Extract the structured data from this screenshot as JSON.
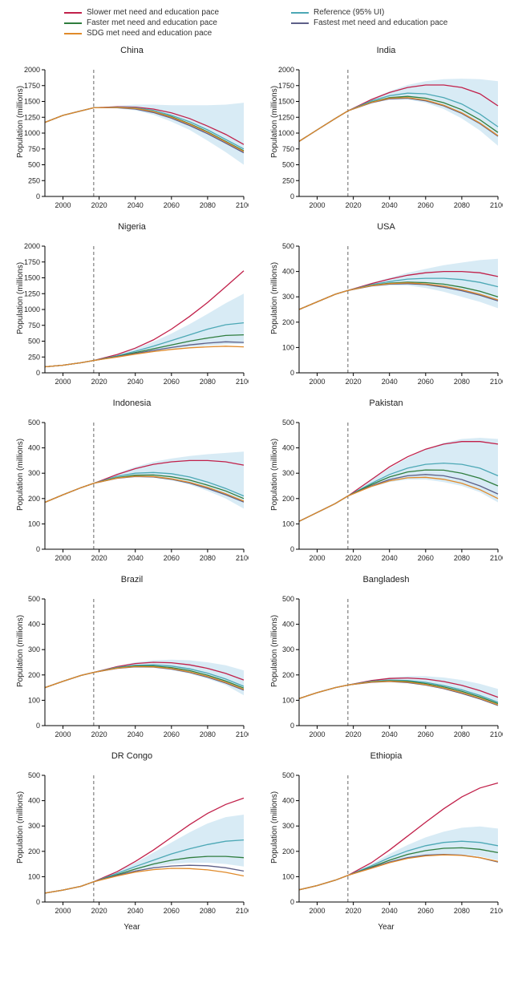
{
  "figure": {
    "background_color": "#ffffff",
    "font_family": "Arial",
    "title_fontsize": 11,
    "label_fontsize": 10,
    "tick_fontsize": 9,
    "x": {
      "label": "Year",
      "min": 1990,
      "max": 2100,
      "ticks": [
        2000,
        2020,
        2040,
        2060,
        2080,
        2100
      ],
      "vline_at": 2017,
      "vline_color": "#666666",
      "vline_dash": "4 3"
    },
    "ylabel": "Population (millions)",
    "axis_color": "#000000",
    "ui_fill": "#bedeee",
    "ui_opacity": 0.6,
    "line_width": 1.3
  },
  "legend": {
    "items": [
      {
        "label": "Slower met need and education pace",
        "color": "#c1204a"
      },
      {
        "label": "Reference (95% UI)",
        "color": "#4ca8b5"
      },
      {
        "label": "Faster met need and education pace",
        "color": "#2f7d3e"
      },
      {
        "label": "Fastest met need and education pace",
        "color": "#5d5f88"
      },
      {
        "label": "SDG met need and education pace",
        "color": "#e08a2a"
      }
    ]
  },
  "panels": [
    {
      "title": "China",
      "y": {
        "min": 0,
        "max": 2000,
        "step": 250
      },
      "ui": {
        "x": [
          1990,
          2000,
          2010,
          2017,
          2030,
          2040,
          2050,
          2060,
          2070,
          2080,
          2090,
          2100
        ],
        "lo": [
          1170,
          1280,
          1350,
          1400,
          1390,
          1360,
          1290,
          1180,
          1050,
          880,
          700,
          500
        ],
        "hi": [
          1170,
          1280,
          1350,
          1400,
          1430,
          1450,
          1450,
          1440,
          1440,
          1440,
          1450,
          1480
        ]
      },
      "series": {
        "reference": [
          1170,
          1280,
          1350,
          1400,
          1410,
          1400,
          1360,
          1280,
          1180,
          1050,
          900,
          750
        ],
        "slower": [
          1170,
          1280,
          1350,
          1400,
          1415,
          1410,
          1380,
          1320,
          1230,
          1110,
          980,
          820
        ],
        "faster": [
          1170,
          1280,
          1350,
          1400,
          1405,
          1390,
          1340,
          1260,
          1150,
          1020,
          870,
          720
        ],
        "fastest": [
          1170,
          1280,
          1350,
          1400,
          1400,
          1380,
          1325,
          1235,
          1120,
          990,
          840,
          690
        ],
        "sdg": [
          1170,
          1280,
          1350,
          1400,
          1405,
          1390,
          1340,
          1250,
          1140,
          1010,
          860,
          710
        ]
      }
    },
    {
      "title": "India",
      "y": {
        "min": 0,
        "max": 2000,
        "step": 250
      },
      "ui": {
        "x": [
          1990,
          2000,
          2010,
          2017,
          2030,
          2040,
          2050,
          2060,
          2070,
          2080,
          2090,
          2100
        ],
        "lo": [
          870,
          1050,
          1230,
          1350,
          1470,
          1530,
          1530,
          1480,
          1380,
          1230,
          1040,
          800
        ],
        "hi": [
          870,
          1050,
          1230,
          1350,
          1540,
          1660,
          1760,
          1820,
          1850,
          1860,
          1850,
          1820
        ]
      },
      "series": {
        "reference": [
          870,
          1050,
          1230,
          1350,
          1510,
          1590,
          1630,
          1620,
          1560,
          1460,
          1300,
          1100
        ],
        "slower": [
          870,
          1050,
          1230,
          1350,
          1530,
          1640,
          1720,
          1760,
          1760,
          1720,
          1620,
          1430
        ],
        "faster": [
          870,
          1050,
          1230,
          1350,
          1490,
          1560,
          1580,
          1550,
          1480,
          1370,
          1210,
          1010
        ],
        "fastest": [
          870,
          1050,
          1230,
          1350,
          1480,
          1540,
          1550,
          1510,
          1430,
          1310,
          1150,
          950
        ],
        "sdg": [
          870,
          1050,
          1230,
          1350,
          1485,
          1550,
          1560,
          1520,
          1440,
          1320,
          1160,
          960
        ]
      }
    },
    {
      "title": "Nigeria",
      "y": {
        "min": 0,
        "max": 2000,
        "step": 250
      },
      "ui": {
        "x": [
          1990,
          2000,
          2010,
          2017,
          2030,
          2040,
          2050,
          2060,
          2070,
          2080,
          2090,
          2100
        ],
        "lo": [
          95,
          120,
          160,
          195,
          250,
          300,
          340,
          380,
          410,
          430,
          450,
          460
        ],
        "hi": [
          95,
          120,
          160,
          195,
          290,
          380,
          490,
          620,
          770,
          930,
          1100,
          1250
        ]
      },
      "series": {
        "reference": [
          95,
          120,
          160,
          195,
          270,
          340,
          420,
          510,
          600,
          690,
          760,
          790
        ],
        "slower": [
          95,
          120,
          160,
          195,
          290,
          390,
          520,
          690,
          890,
          1110,
          1360,
          1610
        ],
        "faster": [
          95,
          120,
          160,
          195,
          260,
          320,
          380,
          440,
          500,
          550,
          590,
          600
        ],
        "fastest": [
          95,
          120,
          160,
          195,
          255,
          305,
          355,
          400,
          440,
          470,
          490,
          480
        ],
        "sdg": [
          95,
          120,
          160,
          195,
          250,
          295,
          335,
          370,
          395,
          410,
          420,
          410
        ]
      }
    },
    {
      "title": "USA",
      "y": {
        "min": 0,
        "max": 500,
        "step": 100
      },
      "ui": {
        "x": [
          1990,
          2000,
          2010,
          2017,
          2030,
          2040,
          2050,
          2060,
          2070,
          2080,
          2090,
          2100
        ],
        "lo": [
          250,
          280,
          310,
          325,
          340,
          345,
          345,
          335,
          320,
          300,
          280,
          255
        ],
        "hi": [
          250,
          280,
          310,
          325,
          355,
          375,
          395,
          410,
          425,
          435,
          445,
          450
        ]
      },
      "series": {
        "reference": [
          250,
          280,
          310,
          325,
          348,
          360,
          370,
          373,
          373,
          368,
          357,
          340
        ],
        "slower": [
          250,
          280,
          310,
          325,
          352,
          370,
          385,
          395,
          400,
          400,
          395,
          380
        ],
        "faster": [
          250,
          280,
          310,
          325,
          345,
          354,
          358,
          356,
          350,
          338,
          322,
          300
        ],
        "fastest": [
          250,
          280,
          310,
          325,
          343,
          350,
          352,
          348,
          338,
          324,
          306,
          284
        ],
        "sdg": [
          250,
          280,
          310,
          325,
          344,
          352,
          355,
          351,
          342,
          328,
          310,
          288
        ]
      }
    },
    {
      "title": "Indonesia",
      "y": {
        "min": 0,
        "max": 500,
        "step": 100
      },
      "ui": {
        "x": [
          1990,
          2000,
          2010,
          2017,
          2030,
          2040,
          2050,
          2060,
          2070,
          2080,
          2090,
          2100
        ],
        "lo": [
          185,
          215,
          243,
          260,
          278,
          285,
          283,
          272,
          255,
          230,
          200,
          160
        ],
        "hi": [
          185,
          215,
          243,
          260,
          300,
          325,
          345,
          358,
          368,
          375,
          380,
          385
        ]
      },
      "series": {
        "reference": [
          185,
          215,
          243,
          260,
          288,
          300,
          303,
          298,
          285,
          265,
          240,
          210
        ],
        "slower": [
          185,
          215,
          243,
          260,
          295,
          318,
          335,
          345,
          350,
          350,
          345,
          332
        ],
        "faster": [
          185,
          215,
          243,
          260,
          283,
          292,
          293,
          286,
          273,
          253,
          230,
          200
        ],
        "fastest": [
          185,
          215,
          243,
          260,
          280,
          287,
          285,
          276,
          261,
          240,
          215,
          186
        ],
        "sdg": [
          185,
          215,
          243,
          260,
          281,
          288,
          287,
          278,
          264,
          244,
          219,
          190
        ]
      }
    },
    {
      "title": "Pakistan",
      "y": {
        "min": 0,
        "max": 500,
        "step": 100
      },
      "ui": {
        "x": [
          1990,
          2000,
          2010,
          2017,
          2030,
          2040,
          2050,
          2060,
          2070,
          2080,
          2090,
          2100
        ],
        "lo": [
          110,
          145,
          180,
          210,
          245,
          265,
          275,
          275,
          265,
          250,
          225,
          185
        ],
        "hi": [
          110,
          145,
          180,
          210,
          275,
          320,
          360,
          395,
          420,
          435,
          440,
          435
        ]
      },
      "series": {
        "reference": [
          110,
          145,
          180,
          210,
          260,
          295,
          320,
          335,
          340,
          335,
          320,
          290
        ],
        "slower": [
          110,
          145,
          180,
          210,
          275,
          325,
          365,
          395,
          415,
          425,
          425,
          415
        ],
        "faster": [
          110,
          145,
          180,
          210,
          255,
          285,
          305,
          313,
          312,
          300,
          280,
          250
        ],
        "fastest": [
          110,
          145,
          180,
          210,
          250,
          275,
          290,
          295,
          290,
          275,
          250,
          218
        ],
        "sdg": [
          110,
          145,
          180,
          210,
          248,
          270,
          282,
          284,
          276,
          260,
          235,
          200
        ]
      }
    },
    {
      "title": "Brazil",
      "y": {
        "min": 0,
        "max": 500,
        "step": 100
      },
      "ui": {
        "x": [
          1990,
          2000,
          2010,
          2017,
          2030,
          2040,
          2050,
          2060,
          2070,
          2080,
          2090,
          2100
        ],
        "lo": [
          150,
          175,
          198,
          210,
          225,
          230,
          228,
          220,
          205,
          185,
          160,
          120
        ],
        "hi": [
          150,
          175,
          198,
          210,
          235,
          250,
          258,
          260,
          258,
          250,
          238,
          218
        ]
      },
      "series": {
        "reference": [
          150,
          175,
          198,
          210,
          230,
          238,
          240,
          235,
          224,
          207,
          184,
          155
        ],
        "slower": [
          150,
          175,
          198,
          210,
          233,
          245,
          250,
          248,
          240,
          226,
          206,
          180
        ],
        "faster": [
          150,
          175,
          198,
          210,
          228,
          235,
          235,
          229,
          217,
          199,
          176,
          148
        ],
        "fastest": [
          150,
          175,
          198,
          210,
          226,
          232,
          231,
          223,
          210,
          191,
          168,
          140
        ],
        "sdg": [
          150,
          175,
          198,
          210,
          227,
          233,
          232,
          225,
          212,
          194,
          171,
          143
        ]
      }
    },
    {
      "title": "Bangladesh",
      "y": {
        "min": 0,
        "max": 500,
        "step": 100
      },
      "ui": {
        "x": [
          1990,
          2000,
          2010,
          2017,
          2030,
          2040,
          2050,
          2060,
          2070,
          2080,
          2090,
          2100
        ],
        "lo": [
          107,
          130,
          150,
          160,
          170,
          172,
          168,
          158,
          144,
          126,
          105,
          75
        ],
        "hi": [
          107,
          130,
          150,
          160,
          180,
          190,
          195,
          195,
          190,
          180,
          165,
          145
        ]
      },
      "series": {
        "reference": [
          107,
          130,
          150,
          160,
          175,
          180,
          178,
          171,
          158,
          141,
          119,
          92
        ],
        "slower": [
          107,
          130,
          150,
          160,
          178,
          186,
          188,
          184,
          174,
          159,
          138,
          112
        ],
        "faster": [
          107,
          130,
          150,
          160,
          173,
          177,
          175,
          166,
          153,
          135,
          113,
          87
        ],
        "fastest": [
          107,
          130,
          150,
          160,
          171,
          174,
          170,
          160,
          146,
          127,
          105,
          80
        ],
        "sdg": [
          107,
          130,
          150,
          160,
          172,
          175,
          172,
          162,
          148,
          130,
          108,
          82
        ]
      }
    },
    {
      "title": "DR Congo",
      "y": {
        "min": 0,
        "max": 500,
        "step": 100
      },
      "ui": {
        "x": [
          1990,
          2000,
          2010,
          2017,
          2030,
          2040,
          2050,
          2060,
          2070,
          2080,
          2090,
          2100
        ],
        "lo": [
          35,
          47,
          62,
          80,
          105,
          125,
          140,
          150,
          155,
          155,
          150,
          140
        ],
        "hi": [
          35,
          47,
          62,
          80,
          120,
          155,
          195,
          235,
          275,
          310,
          335,
          345
        ]
      },
      "series": {
        "reference": [
          35,
          47,
          62,
          80,
          113,
          140,
          165,
          190,
          210,
          227,
          240,
          245
        ],
        "slower": [
          35,
          47,
          62,
          80,
          120,
          160,
          205,
          255,
          305,
          350,
          385,
          410
        ],
        "faster": [
          35,
          47,
          62,
          80,
          108,
          130,
          150,
          165,
          175,
          180,
          180,
          175
        ],
        "fastest": [
          35,
          47,
          62,
          80,
          105,
          122,
          135,
          142,
          145,
          143,
          135,
          122
        ],
        "sdg": [
          35,
          47,
          62,
          80,
          103,
          118,
          128,
          133,
          132,
          127,
          117,
          103
        ]
      }
    },
    {
      "title": "Ethiopia",
      "y": {
        "min": 0,
        "max": 500,
        "step": 100
      },
      "ui": {
        "x": [
          1990,
          2000,
          2010,
          2017,
          2030,
          2040,
          2050,
          2060,
          2070,
          2080,
          2090,
          2100
        ],
        "lo": [
          48,
          65,
          86,
          105,
          135,
          158,
          175,
          185,
          190,
          188,
          180,
          165
        ],
        "hi": [
          48,
          65,
          86,
          105,
          150,
          190,
          225,
          255,
          278,
          293,
          298,
          290
        ]
      },
      "series": {
        "reference": [
          48,
          65,
          86,
          105,
          143,
          175,
          202,
          222,
          235,
          240,
          235,
          222
        ],
        "slower": [
          48,
          65,
          86,
          105,
          155,
          205,
          260,
          315,
          368,
          415,
          450,
          470
        ],
        "faster": [
          48,
          65,
          86,
          105,
          138,
          165,
          188,
          203,
          212,
          214,
          208,
          195
        ],
        "fastest": [
          48,
          65,
          86,
          105,
          135,
          158,
          175,
          185,
          188,
          185,
          175,
          158
        ],
        "sdg": [
          48,
          65,
          86,
          105,
          133,
          155,
          172,
          182,
          186,
          184,
          175,
          160
        ]
      }
    }
  ]
}
